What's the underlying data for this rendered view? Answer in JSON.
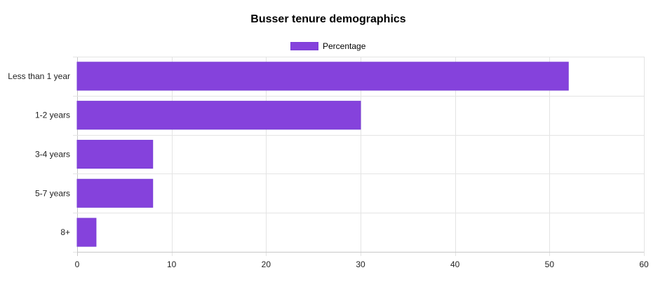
{
  "chart_data": {
    "type": "bar",
    "orientation": "horizontal",
    "title": "Busser tenure demographics",
    "categories": [
      "Less than 1 year",
      "1-2 years",
      "3-4 years",
      "5-7 years",
      "8+"
    ],
    "series": [
      {
        "name": "Percentage",
        "values": [
          52,
          30,
          8,
          8,
          2
        ],
        "color": "#8542dc"
      }
    ],
    "xlim": [
      0,
      60
    ],
    "x_ticks": [
      0,
      10,
      20,
      30,
      40,
      50,
      60
    ],
    "xlabel": "",
    "ylabel": "",
    "grid": true,
    "legend_position": "top-center"
  }
}
